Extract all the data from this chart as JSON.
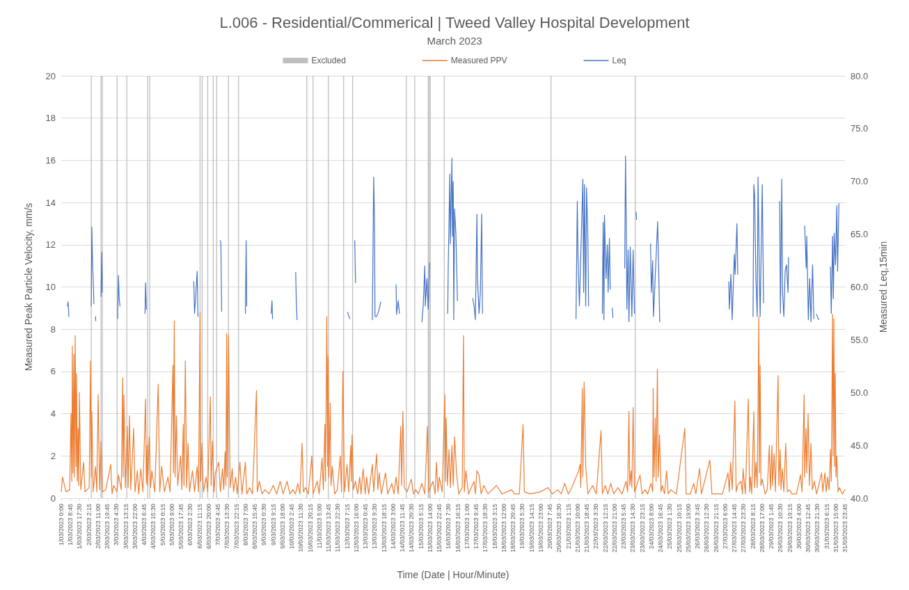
{
  "chart_data": {
    "type": "line",
    "title": "L.006 - Residential/Commerical | Tweed Valley Hospital Development",
    "subtitle": "March 2023",
    "xlabel": "Time (Date | Hour/Minute)",
    "ylabel": "Measured Peak Particle Velocity, mm/s",
    "y2label": "Measured Leq,15min",
    "xlim": [
      "2023-03-01T00:00",
      "2023-03-31T23:45"
    ],
    "xticks": [
      {
        "value": "2023-03-01T00:00",
        "label": "1/03/2023 0:00"
      },
      {
        "value": "2023-03-01T08:45",
        "label": "1/03/2023 8:45"
      },
      {
        "value": "2023-03-01T17:30",
        "label": "1/03/2023 17:30"
      },
      {
        "value": "2023-03-02T02:15",
        "label": "2/03/2023 2:15"
      },
      {
        "value": "2023-03-02T11:00",
        "label": "2/03/2023 11:00"
      },
      {
        "value": "2023-03-02T19:45",
        "label": "2/03/2023 19:45"
      },
      {
        "value": "2023-03-03T04:30",
        "label": "3/03/2023 4:30"
      },
      {
        "value": "2023-03-03T13:15",
        "label": "3/03/2023 13:15"
      },
      {
        "value": "2023-03-03T22:00",
        "label": "3/03/2023 22:00"
      },
      {
        "value": "2023-03-04T06:45",
        "label": "4/03/2023 6:45"
      },
      {
        "value": "2023-03-04T15:30",
        "label": "4/03/2023 15:30"
      },
      {
        "value": "2023-03-05T00:15",
        "label": "5/03/2023 0:15"
      },
      {
        "value": "2023-03-05T09:00",
        "label": "5/03/2023 9:00"
      },
      {
        "value": "2023-03-05T17:45",
        "label": "5/03/2023 17:45"
      },
      {
        "value": "2023-03-06T02:30",
        "label": "6/03/2023 2:30"
      },
      {
        "value": "2023-03-06T11:15",
        "label": "6/03/2023 11:15"
      },
      {
        "value": "2023-03-06T20:00",
        "label": "6/03/2023 20:00"
      },
      {
        "value": "2023-03-07T04:45",
        "label": "7/03/2023 4:45"
      },
      {
        "value": "2023-03-07T13:30",
        "label": "7/03/2023 13:30"
      },
      {
        "value": "2023-03-07T22:15",
        "label": "7/03/2023 22:15"
      },
      {
        "value": "2023-03-08T07:00",
        "label": "8/03/2023 7:00"
      },
      {
        "value": "2023-03-08T15:45",
        "label": "8/03/2023 15:45"
      },
      {
        "value": "2023-03-09T00:30",
        "label": "9/03/2023 0:30"
      },
      {
        "value": "2023-03-09T09:15",
        "label": "9/03/2023 9:15"
      },
      {
        "value": "2023-03-09T18:00",
        "label": "9/03/2023 18:00"
      },
      {
        "value": "2023-03-10T02:45",
        "label": "10/03/2023 2:45"
      },
      {
        "value": "2023-03-10T11:30",
        "label": "10/03/2023 11:30"
      },
      {
        "value": "2023-03-10T20:15",
        "label": "10/03/2023 20:15"
      },
      {
        "value": "2023-03-11T05:00",
        "label": "11/03/2023 5:00"
      },
      {
        "value": "2023-03-11T13:45",
        "label": "11/03/2023 13:45"
      },
      {
        "value": "2023-03-11T22:30",
        "label": "11/03/2023 22:30"
      },
      {
        "value": "2023-03-12T07:15",
        "label": "12/03/2023 7:15"
      },
      {
        "value": "2023-03-12T16:00",
        "label": "12/03/2023 16:00"
      },
      {
        "value": "2023-03-13T00:45",
        "label": "13/03/2023 0:45"
      },
      {
        "value": "2023-03-13T09:30",
        "label": "13/03/2023 9:30"
      },
      {
        "value": "2023-03-13T18:15",
        "label": "13/03/2023 18:15"
      },
      {
        "value": "2023-03-14T03:00",
        "label": "14/03/2023 3:00"
      },
      {
        "value": "2023-03-14T11:45",
        "label": "14/03/2023 11:45"
      },
      {
        "value": "2023-03-14T20:30",
        "label": "14/03/2023 20:30"
      },
      {
        "value": "2023-03-15T05:15",
        "label": "15/03/2023 5:15"
      },
      {
        "value": "2023-03-15T14:00",
        "label": "15/03/2023 14:00"
      },
      {
        "value": "2023-03-15T22:45",
        "label": "15/03/2023 22:45"
      },
      {
        "value": "2023-03-16T07:30",
        "label": "16/03/2023 7:30"
      },
      {
        "value": "2023-03-16T16:15",
        "label": "16/03/2023 16:15"
      },
      {
        "value": "2023-03-17T01:00",
        "label": "17/03/2023 1:00"
      },
      {
        "value": "2023-03-17T09:45",
        "label": "17/03/2023 9:45"
      },
      {
        "value": "2023-03-17T18:30",
        "label": "17/03/2023 18:30"
      },
      {
        "value": "2023-03-18T03:15",
        "label": "18/03/2023 3:15"
      },
      {
        "value": "2023-03-18T12:00",
        "label": "18/03/2023 12:00"
      },
      {
        "value": "2023-03-18T20:45",
        "label": "18/03/2023 20:45"
      },
      {
        "value": "2023-03-19T05:30",
        "label": "19/03/2023 5:30"
      },
      {
        "value": "2023-03-19T14:15",
        "label": "19/03/2023 14:15"
      },
      {
        "value": "2023-03-19T23:00",
        "label": "19/03/2023 23:00"
      },
      {
        "value": "2023-03-20T07:45",
        "label": "20/03/2023 7:45"
      },
      {
        "value": "2023-03-20T16:30",
        "label": "20/03/2023 16:30"
      },
      {
        "value": "2023-03-21T01:15",
        "label": "21/03/2023 1:15"
      },
      {
        "value": "2023-03-21T10:00",
        "label": "21/03/2023 10:00"
      },
      {
        "value": "2023-03-21T18:45",
        "label": "21/03/2023 18:45"
      },
      {
        "value": "2023-03-22T03:30",
        "label": "22/03/2023 3:30"
      },
      {
        "value": "2023-03-22T12:15",
        "label": "22/03/2023 12:15"
      },
      {
        "value": "2023-03-22T21:00",
        "label": "22/03/2023 21:00"
      },
      {
        "value": "2023-03-23T05:45",
        "label": "23/03/2023 5:45"
      },
      {
        "value": "2023-03-23T14:30",
        "label": "23/03/2023 14:30"
      },
      {
        "value": "2023-03-23T23:15",
        "label": "23/03/2023 23:15"
      },
      {
        "value": "2023-03-24T08:00",
        "label": "24/03/2023 8:00"
      },
      {
        "value": "2023-03-24T16:45",
        "label": "24/03/2023 16:45"
      },
      {
        "value": "2023-03-25T01:30",
        "label": "25/03/2023 1:30"
      },
      {
        "value": "2023-03-25T10:15",
        "label": "25/03/2023 10:15"
      },
      {
        "value": "2023-03-25T19:00",
        "label": "25/03/2023 19:00"
      },
      {
        "value": "2023-03-26T03:45",
        "label": "26/03/2023 3:45"
      },
      {
        "value": "2023-03-26T12:30",
        "label": "26/03/2023 12:30"
      },
      {
        "value": "2023-03-26T21:15",
        "label": "26/03/2023 21:15"
      },
      {
        "value": "2023-03-27T06:00",
        "label": "27/03/2023 6:00"
      },
      {
        "value": "2023-03-27T14:45",
        "label": "27/03/2023 14:45"
      },
      {
        "value": "2023-03-27T23:30",
        "label": "27/03/2023 23:30"
      },
      {
        "value": "2023-03-28T08:15",
        "label": "28/03/2023 8:15"
      },
      {
        "value": "2023-03-28T17:00",
        "label": "28/03/2023 17:00"
      },
      {
        "value": "2023-03-29T01:45",
        "label": "29/03/2023 1:45"
      },
      {
        "value": "2023-03-29T10:30",
        "label": "29/03/2023 10:30"
      },
      {
        "value": "2023-03-29T19:15",
        "label": "29/03/2023 19:15"
      },
      {
        "value": "2023-03-30T04:00",
        "label": "30/03/2023 4:00"
      },
      {
        "value": "2023-03-30T12:45",
        "label": "30/03/2023 12:45"
      },
      {
        "value": "2023-03-30T21:30",
        "label": "30/03/2023 21:30"
      },
      {
        "value": "2023-03-31T06:15",
        "label": "31/03/2023 6:15"
      },
      {
        "value": "2023-03-31T15:00",
        "label": "31/03/2023 15:00"
      },
      {
        "value": "2023-03-31T23:45",
        "label": "31/03/2023 23:45"
      }
    ],
    "ylim": [
      0,
      20
    ],
    "yticks": [
      0,
      2,
      4,
      6,
      8,
      10,
      12,
      14,
      16,
      18,
      20
    ],
    "y2lim": [
      40,
      80
    ],
    "y2ticks": [
      {
        "value": 40,
        "label": "40.0"
      },
      {
        "value": 45,
        "label": "45.0"
      },
      {
        "value": 50,
        "label": "50.0"
      },
      {
        "value": 55,
        "label": "55.0"
      },
      {
        "value": 60,
        "label": "60.0"
      },
      {
        "value": 65,
        "label": "65.0"
      },
      {
        "value": 70,
        "label": "70.0"
      },
      {
        "value": 75,
        "label": "75.0"
      },
      {
        "value": 80,
        "label": "80.0"
      }
    ],
    "grid": "y",
    "legend": "top",
    "marker": "none",
    "line_style": "solid",
    "series": [
      {
        "name": "Excluded",
        "type": "bar",
        "color": "#bfbfbf",
        "x": [
          "2023-03-02T04:30",
          "2023-03-02T13:45",
          "2023-03-02T15:00",
          "2023-03-03T05:00",
          "2023-03-03T14:15",
          "2023-03-04T10:00",
          "2023-03-04T12:00",
          "2023-03-06T11:45",
          "2023-03-06T13:45",
          "2023-03-06T19:00",
          "2023-03-07T00:15",
          "2023-03-07T03:30",
          "2023-03-07T14:45",
          "2023-03-08T00:15",
          "2023-03-10T17:00",
          "2023-03-10T23:00",
          "2023-03-11T13:30",
          "2023-03-12T04:00",
          "2023-03-12T12:30",
          "2023-03-14T15:30",
          "2023-03-14T23:30",
          "2023-03-15T12:15",
          "2023-03-15T13:15",
          "2023-03-15T14:15",
          "2023-03-16T03:30",
          "2023-03-20T08:45",
          "2023-03-23T16:45"
        ],
        "values": [
          20,
          20,
          20,
          20,
          20,
          20,
          20,
          20,
          20,
          20,
          20,
          20,
          20,
          20,
          20,
          20,
          20,
          20,
          20,
          20,
          20,
          20,
          20,
          20,
          20,
          20,
          20
        ]
      },
      {
        "name": "Measured PPV",
        "color": "#ed7d31",
        "x": [
          "2023-03-01T00:00",
          "2023-03-01T01:15",
          "2023-03-01T04:30",
          "2023-03-01T08:00",
          "2023-03-01T09:15",
          "2023-03-01T10:00",
          "2023-03-01T10:30",
          "2023-03-01T11:15",
          "2023-03-01T12:00",
          "2023-03-01T12:30",
          "2023-03-01T13:15",
          "2023-03-01T14:00",
          "2023-03-01T14:30",
          "2023-03-01T15:15",
          "2023-03-01T16:00",
          "2023-03-01T16:30",
          "2023-03-01T17:15",
          "2023-03-01T18:30",
          "2023-03-01T21:15",
          "2023-03-01T22:30",
          "2023-03-02T02:30",
          "2023-03-02T03:45",
          "2023-03-02T04:30",
          "2023-03-02T05:00",
          "2023-03-02T06:15",
          "2023-03-02T08:30",
          "2023-03-02T09:45",
          "2023-03-02T11:00",
          "2023-03-02T12:30",
          "2023-03-02T13:45",
          "2023-03-02T15:00",
          "2023-03-02T18:15",
          "2023-03-02T23:00",
          "2023-03-03T00:15",
          "2023-03-03T01:45",
          "2023-03-03T05:00",
          "2023-03-03T06:15",
          "2023-03-03T09:00",
          "2023-03-03T10:15",
          "2023-03-03T10:45",
          "2023-03-03T11:30",
          "2023-03-03T12:45",
          "2023-03-03T14:45",
          "2023-03-03T15:30",
          "2023-03-03T16:45",
          "2023-03-03T18:00",
          "2023-03-03T20:45",
          "2023-03-03T22:00",
          "2023-03-04T00:15",
          "2023-03-04T01:30",
          "2023-03-04T03:30",
          "2023-03-04T05:30",
          "2023-03-04T08:00",
          "2023-03-04T08:45",
          "2023-03-04T09:30",
          "2023-03-04T10:00",
          "2023-03-04T11:30",
          "2023-03-04T12:45",
          "2023-03-04T14:00",
          "2023-03-04T16:45",
          "2023-03-04T20:00",
          "2023-03-04T21:30",
          "2023-03-04T23:15",
          "2023-03-05T02:00",
          "2023-03-05T05:15",
          "2023-03-05T07:15",
          "2023-03-05T10:00",
          "2023-03-05T10:30",
          "2023-03-05T11:15",
          "2023-03-05T12:00",
          "2023-03-05T13:15",
          "2023-03-05T14:30",
          "2023-03-05T17:15",
          "2023-03-05T18:30",
          "2023-03-05T19:45",
          "2023-03-05T20:30",
          "2023-03-05T21:45",
          "2023-03-05T23:00",
          "2023-03-06T00:15",
          "2023-03-06T01:45",
          "2023-03-06T04:30",
          "2023-03-06T06:30",
          "2023-03-06T09:00",
          "2023-03-06T10:15",
          "2023-03-06T11:45",
          "2023-03-06T12:15",
          "2023-03-06T13:30",
          "2023-03-06T15:00",
          "2023-03-06T17:30",
          "2023-03-06T19:00",
          "2023-03-06T21:30",
          "2023-03-06T22:15",
          "2023-03-06T23:30",
          "2023-03-07T01:00",
          "2023-03-07T02:15",
          "2023-03-07T05:30",
          "2023-03-07T07:00",
          "2023-03-07T09:00",
          "2023-03-07T10:15",
          "2023-03-07T11:30",
          "2023-03-07T12:15",
          "2023-03-07T13:00",
          "2023-03-07T13:30",
          "2023-03-07T14:45",
          "2023-03-07T16:15",
          "2023-03-07T18:15",
          "2023-03-07T19:30",
          "2023-03-07T21:30",
          "2023-03-07T23:00",
          "2023-03-08T01:30",
          "2023-03-08T03:30",
          "2023-03-08T06:45",
          "2023-03-08T08:00",
          "2023-03-08T10:45",
          "2023-03-08T13:30",
          "2023-03-08T17:15",
          "2023-03-08T18:00",
          "2023-03-08T20:00",
          "2023-03-08T22:30",
          "2023-03-09T01:15",
          "2023-03-09T05:15",
          "2023-03-09T09:15",
          "2023-03-09T12:30",
          "2023-03-09T15:45",
          "2023-03-09T18:30",
          "2023-03-09T22:15",
          "2023-03-10T01:00",
          "2023-03-10T03:45",
          "2023-03-10T06:15",
          "2023-03-10T08:30",
          "2023-03-10T10:30",
          "2023-03-10T12:30",
          "2023-03-10T13:45",
          "2023-03-10T15:45",
          "2023-03-10T18:30",
          "2023-03-10T21:45",
          "2023-03-10T23:00",
          "2023-03-11T03:00",
          "2023-03-11T04:45",
          "2023-03-11T07:30",
          "2023-03-11T08:45",
          "2023-03-11T10:15",
          "2023-03-11T10:45",
          "2023-03-11T12:00",
          "2023-03-11T12:45",
          "2023-03-11T13:15",
          "2023-03-11T14:00",
          "2023-03-11T15:15",
          "2023-03-11T16:00",
          "2023-03-11T17:15",
          "2023-03-11T19:30",
          "2023-03-11T22:00",
          "2023-03-12T00:45",
          "2023-03-12T02:00",
          "2023-03-12T03:15",
          "2023-03-12T04:45",
          "2023-03-12T07:15",
          "2023-03-12T08:45",
          "2023-03-12T10:45",
          "2023-03-12T11:15",
          "2023-03-12T12:00",
          "2023-03-12T13:15",
          "2023-03-12T15:15",
          "2023-03-12T17:15",
          "2023-03-12T19:15",
          "2023-03-12T20:30",
          "2023-03-12T22:30",
          "2023-03-13T00:30",
          "2023-03-13T01:45",
          "2023-03-13T03:45",
          "2023-03-13T07:15",
          "2023-03-13T08:30",
          "2023-03-13T11:15",
          "2023-03-13T12:30",
          "2023-03-13T13:45",
          "2023-03-13T15:45",
          "2023-03-13T19:45",
          "2023-03-13T21:45",
          "2023-03-14T01:45",
          "2023-03-14T03:45",
          "2023-03-14T05:45",
          "2023-03-14T07:45",
          "2023-03-14T10:15",
          "2023-03-14T11:00",
          "2023-03-14T12:15",
          "2023-03-14T13:30",
          "2023-03-14T16:15",
          "2023-03-14T20:15",
          "2023-03-14T22:15",
          "2023-03-15T00:15",
          "2023-03-15T03:00",
          "2023-03-15T06:15",
          "2023-03-15T09:00",
          "2023-03-15T11:30",
          "2023-03-15T12:45",
          "2023-03-15T16:45",
          "2023-03-15T18:45",
          "2023-03-15T20:00",
          "2023-03-15T21:30",
          "2023-03-15T22:45",
          "2023-03-16T01:30",
          "2023-03-16T04:00",
          "2023-03-16T04:45",
          "2023-03-16T05:15",
          "2023-03-16T06:30",
          "2023-03-16T08:00",
          "2023-03-16T09:15",
          "2023-03-16T10:45",
          "2023-03-16T12:00",
          "2023-03-16T13:15",
          "2023-03-16T15:15",
          "2023-03-16T17:15",
          "2023-03-16T20:30",
          "2023-03-16T21:45",
          "2023-03-16T22:30",
          "2023-03-17T00:00",
          "2023-03-17T02:30",
          "2023-03-17T07:45",
          "2023-03-17T09:00",
          "2023-03-17T10:30",
          "2023-03-17T12:30",
          "2023-03-17T14:30",
          "2023-03-17T17:00",
          "2023-03-17T21:00",
          "2023-03-18T05:00",
          "2023-03-18T10:15",
          "2023-03-18T19:30",
          "2023-03-18T22:00",
          "2023-03-19T02:45",
          "2023-03-19T06:15",
          "2023-03-19T07:30",
          "2023-03-19T12:45",
          "2023-03-19T22:45",
          "2023-03-20T06:00",
          "2023-03-20T10:00",
          "2023-03-20T15:15",
          "2023-03-20T18:30",
          "2023-03-20T21:45",
          "2023-03-21T01:15",
          "2023-03-21T04:30",
          "2023-03-21T08:30",
          "2023-03-21T10:30",
          "2023-03-21T12:30",
          "2023-03-21T13:00",
          "2023-03-21T14:30",
          "2023-03-21T15:00",
          "2023-03-21T16:15",
          "2023-03-21T17:45",
          "2023-03-21T19:45",
          "2023-03-22T00:15",
          "2023-03-22T03:45",
          "2023-03-22T08:15",
          "2023-03-22T09:30",
          "2023-03-22T12:15",
          "2023-03-22T14:45",
          "2023-03-22T17:30",
          "2023-03-22T20:15",
          "2023-03-23T00:15",
          "2023-03-23T04:15",
          "2023-03-23T08:00",
          "2023-03-23T09:30",
          "2023-03-23T10:45",
          "2023-03-23T11:30",
          "2023-03-23T12:45",
          "2023-03-23T13:30",
          "2023-03-23T14:45",
          "2023-03-23T16:00",
          "2023-03-23T17:30",
          "2023-03-23T21:15",
          "2023-03-23T23:15",
          "2023-03-24T02:00",
          "2023-03-24T04:30",
          "2023-03-24T07:45",
          "2023-03-24T09:15",
          "2023-03-24T09:45",
          "2023-03-24T10:30",
          "2023-03-24T11:45",
          "2023-03-24T12:30",
          "2023-03-24T13:45",
          "2023-03-24T14:30",
          "2023-03-24T15:45",
          "2023-03-24T17:15",
          "2023-03-24T18:30",
          "2023-03-24T20:30",
          "2023-03-24T22:30",
          "2023-03-25T00:00",
          "2023-03-25T02:30",
          "2023-03-25T07:45",
          "2023-03-25T15:45",
          "2023-03-25T17:00",
          "2023-03-25T21:00",
          "2023-03-26T00:15",
          "2023-03-26T02:15",
          "2023-03-26T05:45",
          "2023-03-26T07:30",
          "2023-03-26T15:30",
          "2023-03-26T17:30",
          "2023-03-26T22:15",
          "2023-03-27T03:30",
          "2023-03-27T08:45",
          "2023-03-27T10:00",
          "2023-03-27T11:15",
          "2023-03-27T12:45",
          "2023-03-27T15:15",
          "2023-03-27T16:30",
          "2023-03-27T17:45",
          "2023-03-27T21:00",
          "2023-03-27T22:30",
          "2023-03-27T23:00",
          "2023-03-28T01:15",
          "2023-03-28T04:00",
          "2023-03-28T05:15",
          "2023-03-28T06:00",
          "2023-03-28T07:15",
          "2023-03-28T09:15",
          "2023-03-28T10:00",
          "2023-03-28T11:15",
          "2023-03-28T12:30",
          "2023-03-28T14:00",
          "2023-03-28T14:30",
          "2023-03-28T15:15",
          "2023-03-28T16:00",
          "2023-03-28T17:15",
          "2023-03-28T20:00",
          "2023-03-28T22:00",
          "2023-03-29T00:00",
          "2023-03-29T01:00",
          "2023-03-29T02:30",
          "2023-03-29T03:00",
          "2023-03-29T04:30",
          "2023-03-29T05:45",
          "2023-03-29T08:15",
          "2023-03-29T09:00",
          "2023-03-29T10:15",
          "2023-03-29T11:00",
          "2023-03-29T12:15",
          "2023-03-29T13:45",
          "2023-03-29T15:30",
          "2023-03-29T17:00",
          "2023-03-29T19:00",
          "2023-03-29T21:30",
          "2023-03-30T01:45",
          "2023-03-30T05:30",
          "2023-03-30T07:00",
          "2023-03-30T09:00",
          "2023-03-30T09:30",
          "2023-03-30T10:45",
          "2023-03-30T11:30",
          "2023-03-30T12:45",
          "2023-03-30T14:00",
          "2023-03-30T15:30",
          "2023-03-30T16:45",
          "2023-03-30T18:45",
          "2023-03-30T20:45",
          "2023-03-30T23:15",
          "2023-03-31T01:30",
          "2023-03-31T02:45",
          "2023-03-31T04:45",
          "2023-03-31T06:00",
          "2023-03-31T07:15",
          "2023-03-31T08:45",
          "2023-03-31T10:00",
          "2023-03-31T10:45",
          "2023-03-31T12:00",
          "2023-03-31T12:30",
          "2023-03-31T13:15",
          "2023-03-31T14:00",
          "2023-03-31T14:30",
          "2023-03-31T15:15",
          "2023-03-31T16:00",
          "2023-03-31T17:15",
          "2023-03-31T18:30",
          "2023-03-31T21:15",
          "2023-03-31T23:45"
        ],
        "values": [
          0.3,
          1.0,
          0.3,
          0.4,
          4.0,
          0.8,
          7.2,
          1.2,
          6.8,
          1.0,
          7.7,
          1.5,
          5.9,
          0.8,
          3.3,
          0.6,
          5.0,
          0.4,
          1.7,
          0.3,
          0.5,
          6.5,
          1.0,
          4.1,
          0.3,
          1.5,
          0.3,
          4.9,
          0.4,
          2.7,
          0.3,
          0.4,
          1.6,
          0.2,
          0.6,
          0.3,
          1.1,
          0.4,
          5.7,
          1.0,
          4.9,
          0.5,
          3.4,
          0.5,
          3.9,
          0.4,
          3.3,
          0.3,
          1.3,
          0.2,
          1.4,
          0.3,
          4.7,
          0.7,
          2.5,
          0.6,
          2.9,
          0.5,
          1.3,
          0.3,
          5.4,
          0.3,
          1.5,
          0.3,
          1.0,
          0.3,
          6.3,
          1.2,
          8.4,
          1.0,
          3.9,
          0.6,
          2.0,
          0.4,
          3.5,
          0.6,
          6.5,
          0.5,
          2.6,
          0.3,
          1.3,
          0.3,
          1.5,
          0.3,
          8.8,
          0.8,
          2.6,
          0.3,
          1.0,
          0.3,
          4.8,
          0.6,
          2.7,
          0.3,
          1.2,
          1.7,
          0.3,
          1.4,
          0.4,
          2.2,
          0.6,
          7.8,
          1.0,
          7.7,
          0.5,
          1.4,
          0.3,
          1.0,
          0.2,
          1.7,
          0.2,
          1.7,
          0.2,
          0.5,
          0.2,
          5.1,
          0.3,
          0.8,
          0.2,
          0.4,
          0.2,
          0.6,
          0.2,
          0.8,
          0.2,
          0.8,
          0.2,
          0.4,
          0.2,
          0.7,
          0.2,
          2.6,
          0.3,
          0.5,
          0.2,
          2.0,
          0.2,
          0.8,
          0.2,
          1.9,
          0.4,
          3.5,
          0.8,
          8.6,
          1.5,
          6.7,
          1.0,
          4.5,
          0.6,
          1.5,
          0.2,
          0.4,
          2.0,
          0.3,
          6.0,
          0.3,
          1.6,
          0.3,
          2.5,
          0.8,
          3.0,
          0.4,
          0.8,
          0.2,
          1.0,
          0.2,
          1.4,
          0.2,
          1.0,
          0.2,
          1.6,
          0.3,
          2.1,
          0.4,
          1.2,
          0.2,
          1.2,
          0.2,
          0.7,
          0.2,
          1.0,
          0.2,
          3.4,
          0.6,
          4.1,
          0.5,
          0.3,
          0.9,
          0.2,
          0.4,
          0.2,
          0.7,
          0.2,
          3.4,
          0.3,
          0.8,
          0.2,
          1.7,
          0.3,
          1.0,
          0.3,
          4.9,
          0.8,
          3.8,
          0.6,
          2.3,
          0.5,
          2.5,
          0.6,
          2.9,
          1.1,
          0.2,
          0.5,
          7.7,
          0.3,
          1.3,
          0.2,
          0.8,
          0.2,
          1.3,
          1.1,
          0.2,
          0.6,
          0.2,
          0.6,
          0.2,
          0.4,
          0.2,
          0.2,
          3.5,
          0.3,
          0.2,
          0.3,
          0.5,
          0.2,
          0.4,
          0.2,
          0.7,
          0.2,
          0.5,
          1.0,
          1.2,
          1.6,
          0.5,
          5.2,
          1.0,
          5.5,
          1.5,
          0.2,
          0.6,
          0.2,
          3.2,
          0.2,
          0.6,
          0.2,
          0.7,
          0.2,
          0.5,
          0.2,
          0.8,
          0.3,
          4.1,
          0.6,
          1.3,
          0.5,
          4.3,
          0.3,
          0.5,
          1.1,
          0.2,
          0.4,
          0.2,
          0.7,
          0.3,
          5.2,
          1.0,
          3.8,
          0.8,
          6.1,
          1.0,
          3.0,
          0.3,
          0.6,
          0.2,
          1.3,
          0.2,
          0.4,
          0.2,
          3.3,
          0.2,
          0.2,
          0.7,
          0.2,
          1.4,
          0.2,
          1.8,
          0.2,
          0.2,
          0.2,
          1.2,
          0.3,
          1.7,
          0.4,
          4.6,
          0.3,
          0.6,
          0.8,
          0.2,
          1.4,
          0.2,
          4.7,
          0.3,
          1.0,
          0.2,
          4.1,
          0.5,
          1.7,
          0.5,
          8.6,
          1.2,
          6.3,
          0.6,
          0.9,
          0.2,
          0.4,
          2.5,
          0.4,
          2.5,
          0.6,
          2.1,
          0.3,
          5.8,
          0.6,
          2.3,
          0.4,
          1.4,
          0.3,
          2.6,
          0.3,
          0.4,
          0.2,
          0.2,
          1.1,
          0.3,
          4.9,
          1.0,
          3.3,
          1.2,
          4.0,
          0.6,
          2.6,
          0.4,
          0.8,
          0.2,
          0.7,
          1.2,
          0.3,
          1.2,
          0.3,
          1.0,
          0.4,
          2.3,
          0.8,
          8.7,
          2.0,
          8.5,
          1.5,
          5.9,
          1.0,
          2.0,
          0.3,
          0.5,
          0.2,
          0.4
        ]
      },
      {
        "name": "Leq",
        "color": "#4472c4",
        "axis": "y2",
        "x": [
          "2023-03-01T06:00",
          "2023-03-01T06:30",
          "2023-03-01T07:15",
          "2023-03-01T18:00",
          "2023-03-02T04:30",
          "2023-03-02T05:00",
          "2023-03-02T05:45",
          "2023-03-02T06:30",
          "2023-03-02T07:00",
          "2023-03-02T07:30",
          "2023-03-02T08:30",
          "2023-03-02T08:45",
          "2023-03-02T10:00",
          "2023-03-02T13:45",
          "2023-03-02T14:30",
          "2023-03-02T15:00",
          "2023-03-02T20:00",
          "2023-03-03T05:30",
          "2023-03-03T06:15",
          "2023-03-03T07:00",
          "2023-03-03T07:45",
          "2023-03-03T20:00",
          "2023-03-04T07:30",
          "2023-03-04T08:00",
          "2023-03-04T08:45",
          "2023-03-04T20:00",
          "2023-03-06T05:45",
          "2023-03-06T06:30",
          "2023-03-06T07:00",
          "2023-03-06T09:00",
          "2023-03-06T09:45",
          "2023-03-06T15:00",
          "2023-03-07T07:00",
          "2023-03-07T07:30",
          "2023-03-07T08:15",
          "2023-03-07T20:00",
          "2023-03-08T06:45",
          "2023-03-08T07:30",
          "2023-03-08T08:00",
          "2023-03-08T20:00",
          "2023-03-09T07:15",
          "2023-03-09T08:00",
          "2023-03-09T08:30",
          "2023-03-09T20:00",
          "2023-03-10T06:30",
          "2023-03-10T07:00",
          "2023-03-10T07:45",
          "2023-03-10T20:00",
          "2023-03-12T07:45",
          "2023-03-12T09:45",
          "2023-03-12T11:00",
          "2023-03-12T14:30",
          "2023-03-12T15:15",
          "2023-03-12T20:00",
          "2023-03-13T07:15",
          "2023-03-13T08:30",
          "2023-03-13T09:15",
          "2023-03-13T09:45",
          "2023-03-13T11:15",
          "2023-03-13T13:15",
          "2023-03-13T15:15",
          "2023-03-13T20:00",
          "2023-03-14T05:45",
          "2023-03-14T06:15",
          "2023-03-14T07:45",
          "2023-03-14T09:00",
          "2023-03-14T20:00",
          "2023-03-15T06:15",
          "2023-03-15T07:30",
          "2023-03-15T09:00",
          "2023-03-15T09:30",
          "2023-03-15T11:00",
          "2023-03-15T12:15",
          "2023-03-15T13:30",
          "2023-03-15T20:00",
          "2023-03-16T06:45",
          "2023-03-16T07:15",
          "2023-03-16T08:45",
          "2023-03-16T09:15",
          "2023-03-16T10:45",
          "2023-03-16T11:15",
          "2023-03-16T12:00",
          "2023-03-16T12:30",
          "2023-03-16T13:15",
          "2023-03-16T14:30",
          "2023-03-16T16:00",
          "2023-03-16T22:00",
          "2023-03-17T06:30",
          "2023-03-17T07:45",
          "2023-03-17T09:00",
          "2023-03-17T10:30",
          "2023-03-17T11:00",
          "2023-03-17T12:30",
          "2023-03-17T13:45",
          "2023-03-17T15:00",
          "2023-03-17T15:45",
          "2023-03-18T12:00",
          "2023-03-21T08:30",
          "2023-03-21T09:45",
          "2023-03-21T10:30",
          "2023-03-21T11:45",
          "2023-03-21T15:00",
          "2023-03-21T15:45",
          "2023-03-21T16:30",
          "2023-03-21T17:45",
          "2023-03-21T18:30",
          "2023-03-21T19:45",
          "2023-03-21T20:30",
          "2023-03-21T23:00",
          "2023-03-22T09:30",
          "2023-03-22T10:15",
          "2023-03-22T11:00",
          "2023-03-22T11:30",
          "2023-03-22T13:00",
          "2023-03-22T14:15",
          "2023-03-22T15:00",
          "2023-03-22T16:15",
          "2023-03-22T17:00",
          "2023-03-22T17:30",
          "2023-03-22T19:00",
          "2023-03-22T19:30",
          "2023-03-22T22:00",
          "2023-03-23T06:45",
          "2023-03-23T07:30",
          "2023-03-23T08:15",
          "2023-03-23T08:45",
          "2023-03-23T10:00",
          "2023-03-23T10:45",
          "2023-03-23T12:00",
          "2023-03-23T13:30",
          "2023-03-23T14:45",
          "2023-03-23T16:00",
          "2023-03-23T16:30",
          "2023-03-23T17:30",
          "2023-03-23T18:00",
          "2023-03-23T22:00",
          "2023-03-24T07:15",
          "2023-03-24T08:00",
          "2023-03-24T09:15",
          "2023-03-24T10:00",
          "2023-03-24T14:00",
          "2023-03-24T16:00",
          "2023-03-25T12:00",
          "2023-03-27T09:30",
          "2023-03-27T10:00",
          "2023-03-27T11:30",
          "2023-03-27T12:45",
          "2023-03-27T14:45",
          "2023-03-27T15:30",
          "2023-03-27T17:15",
          "2023-03-27T18:00",
          "2023-03-27T23:00",
          "2023-03-28T08:30",
          "2023-03-28T09:15",
          "2023-03-28T10:00",
          "2023-03-28T11:15",
          "2023-03-28T12:30",
          "2023-03-28T13:15",
          "2023-03-28T14:30",
          "2023-03-28T15:15",
          "2023-03-28T17:15",
          "2023-03-28T18:30",
          "2023-03-28T23:00",
          "2023-03-29T09:45",
          "2023-03-29T10:30",
          "2023-03-29T11:45",
          "2023-03-29T12:30",
          "2023-03-29T13:45",
          "2023-03-29T15:00",
          "2023-03-29T16:15",
          "2023-03-29T17:45",
          "2023-03-29T18:15",
          "2023-03-30T00:00",
          "2023-03-30T09:30",
          "2023-03-30T11:00",
          "2023-03-30T11:30",
          "2023-03-30T13:00",
          "2023-03-30T14:15",
          "2023-03-30T15:30",
          "2023-03-30T17:00",
          "2023-03-30T18:15",
          "2023-03-30T19:30",
          "2023-03-30T20:45",
          "2023-03-30T22:45",
          "2023-03-31T05:00",
          "2023-03-31T10:00",
          "2023-03-31T10:45",
          "2023-03-31T12:00",
          "2023-03-31T12:45",
          "2023-03-31T13:30",
          "2023-03-31T14:45",
          "2023-03-31T16:00",
          "2023-03-31T16:45",
          "2023-03-31T18:00"
        ],
        "values": [
          58.2,
          58.6,
          57.2,
          null,
          58.2,
          65.7,
          62.1,
          60.2,
          58.4,
          null,
          57.2,
          56.8,
          null,
          59.1,
          63.3,
          59.5,
          null,
          57.0,
          61.1,
          58.9,
          58.2,
          null,
          57.5,
          60.4,
          57.9,
          null,
          60.5,
          57.5,
          58.2,
          61.5,
          57.2,
          null,
          64.4,
          64.1,
          57.7,
          null,
          57.5,
          64.4,
          58.2,
          null,
          57.5,
          58.7,
          57.0,
          null,
          61.4,
          58.9,
          56.9,
          null,
          57.6,
          57.0,
          null,
          64.4,
          60.4,
          null,
          56.9,
          70.4,
          66.4,
          57.2,
          57.2,
          57.7,
          58.6,
          null,
          60.2,
          57.4,
          58.7,
          57.5,
          null,
          56.7,
          58.2,
          62.0,
          58.2,
          60.8,
          57.9,
          62.3,
          null,
          57.5,
          61.9,
          70.7,
          64.1,
          72.2,
          64.8,
          70.0,
          56.9,
          67.4,
          65.1,
          58.7,
          null,
          58.9,
          58.2,
          56.9,
          66.9,
          60.8,
          57.5,
          59.5,
          66.9,
          57.5,
          null,
          57.0,
          68.1,
          62.5,
          58.2,
          70.2,
          59.5,
          69.7,
          58.2,
          69.4,
          64.8,
          58.2,
          null,
          57.5,
          66.1,
          56.9,
          66.8,
          60.8,
          64.0,
          59.5,
          64.6,
          59.8,
          null,
          58.0,
          57.1,
          null,
          61.8,
          72.4,
          65.4,
          57.9,
          63.5,
          56.7,
          63.8,
          57.2,
          63.5,
          57.5,
          null,
          67.1,
          66.4,
          null,
          64.1,
          59.5,
          62.5,
          57.2,
          66.2,
          56.7,
          null,
          60.5,
          57.9,
          61.2,
          56.9,
          63.1,
          61.2,
          66.0,
          61.2,
          null,
          57.2,
          69.7,
          68.7,
          60.8,
          57.2,
          70.4,
          61.5,
          57.2,
          69.7,
          58.5,
          null,
          68.1,
          57.5,
          70.2,
          59.5,
          57.2,
          61.5,
          62.1,
          59.5,
          62.8,
          null,
          65.8,
          61.8,
          64.8,
          56.9,
          60.8,
          56.7,
          62.1,
          57.0,
          null,
          57.4,
          56.9,
          null,
          61.9,
          57.5,
          64.8,
          58.9,
          65.1,
          62.1,
          67.7,
          61.5,
          67.9
        ]
      }
    ]
  }
}
